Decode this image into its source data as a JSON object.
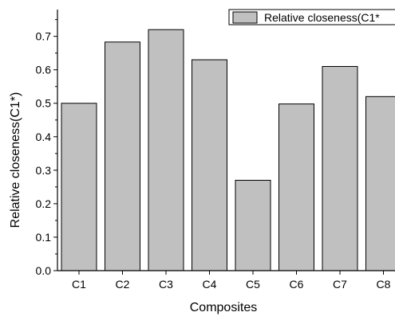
{
  "chart_data": {
    "type": "bar",
    "categories": [
      "C1",
      "C2",
      "C3",
      "C4",
      "C5",
      "C6",
      "C7",
      "C8"
    ],
    "series": [
      {
        "name": "Relative closeness(C1*",
        "values": [
          0.5,
          0.683,
          0.72,
          0.63,
          0.27,
          0.498,
          0.61,
          0.52
        ]
      }
    ],
    "xlabel": "Composites",
    "ylabel": "Relative closeness(C1*)",
    "ylim": [
      0,
      0.78
    ],
    "yticks": [
      0.0,
      0.1,
      0.2,
      0.3,
      0.4,
      0.5,
      0.6,
      0.7
    ],
    "ytick_labels": [
      "0.0",
      "0.1",
      "0.2",
      "0.3",
      "0.4",
      "0.5",
      "0.6",
      "0.7"
    ],
    "grid": false,
    "legend_position": "top-right",
    "bar_color": "#c0c0c0",
    "edge_color": "#000000"
  }
}
